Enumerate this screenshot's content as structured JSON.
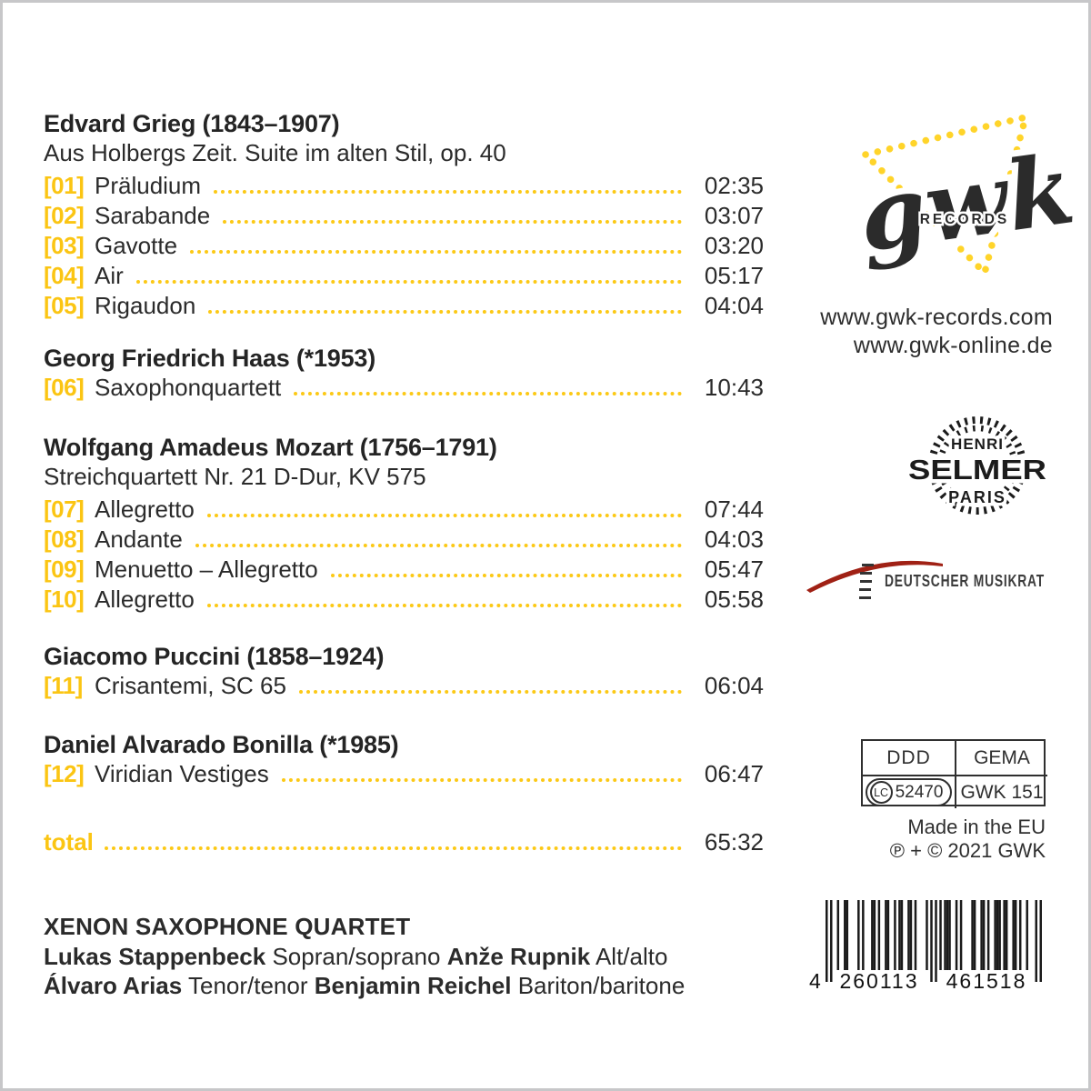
{
  "tracklist": {
    "sections": [
      {
        "composer": "Edvard Grieg (1843–1907)",
        "work": "Aus Holbergs Zeit. Suite im alten Stil, op. 40",
        "tracks": [
          {
            "num": "[01]",
            "title": "Präludium",
            "time": "02:35"
          },
          {
            "num": "[02]",
            "title": "Sarabande",
            "time": "03:07"
          },
          {
            "num": "[03]",
            "title": "Gavotte",
            "time": "03:20"
          },
          {
            "num": "[04]",
            "title": "Air",
            "time": "05:17"
          },
          {
            "num": "[05]",
            "title": "Rigaudon",
            "time": "04:04"
          }
        ]
      },
      {
        "composer": "Georg Friedrich Haas (*1953)",
        "tracks": [
          {
            "num": "[06]",
            "title": "Saxophonquartett",
            "time": "10:43"
          }
        ]
      },
      {
        "composer": "Wolfgang Amadeus Mozart (1756–1791)",
        "work": "Streichquartett Nr. 21 D-Dur, KV 575",
        "tracks": [
          {
            "num": "[07]",
            "title": "Allegretto",
            "time": "07:44"
          },
          {
            "num": "[08]",
            "title": "Andante",
            "time": "04:03"
          },
          {
            "num": "[09]",
            "title": "Menuetto – Allegretto",
            "time": "05:47"
          },
          {
            "num": "[10]",
            "title": "Allegretto",
            "time": "05:58"
          }
        ]
      },
      {
        "composer": "Giacomo Puccini (1858–1924)",
        "tracks": [
          {
            "num": "[11]",
            "title": "Crisantemi, SC 65",
            "time": "06:04"
          }
        ]
      },
      {
        "composer": "Daniel Alvarado Bonilla (*1985)",
        "tracks": [
          {
            "num": "[12]",
            "title": "Viridian Vestiges",
            "time": "06:47"
          }
        ]
      }
    ],
    "total_label": "total",
    "total_time": "65:32"
  },
  "ensemble": {
    "name": "XENON SAXOPHONE QUARTET",
    "members": [
      {
        "name": "Lukas Stappenbeck",
        "role": "Sopran/soprano"
      },
      {
        "name": "Anže Rupnik",
        "role": "Alt/alto"
      },
      {
        "name": "Álvaro Arias",
        "role": "Tenor/tenor"
      },
      {
        "name": "Benjamin Reichel",
        "role": "Bariton/baritone"
      }
    ]
  },
  "label": {
    "logo_text": "gwk",
    "logo_subtext": "RECORDS",
    "website1": "www.gwk-records.com",
    "website2": "www.gwk-online.de"
  },
  "partners": {
    "selmer_line1": "HENRI",
    "selmer_line2": "SELMER",
    "selmer_line3": "PARIS",
    "musikrat": "DEUTSCHER MUSIKRAT"
  },
  "release": {
    "format": "DDD",
    "rights_society": "GEMA",
    "label_code_prefix": "LC",
    "label_code": "52470",
    "catalog_number": "GWK 151",
    "made_in": "Made in the EU",
    "copyright": "℗ + © 2021 GWK",
    "barcode_digit_left": "4",
    "barcode_digits_mid": "260113",
    "barcode_digits_right": "461518",
    "barcode_modules": "10100100110000101000110100110010110011010000101010101110010100001100110100111011001101001000101"
  },
  "colors": {
    "accent_yellow": "#FBC513",
    "text_dark": "#2b2b2b",
    "musikrat_red": "#a02115"
  }
}
